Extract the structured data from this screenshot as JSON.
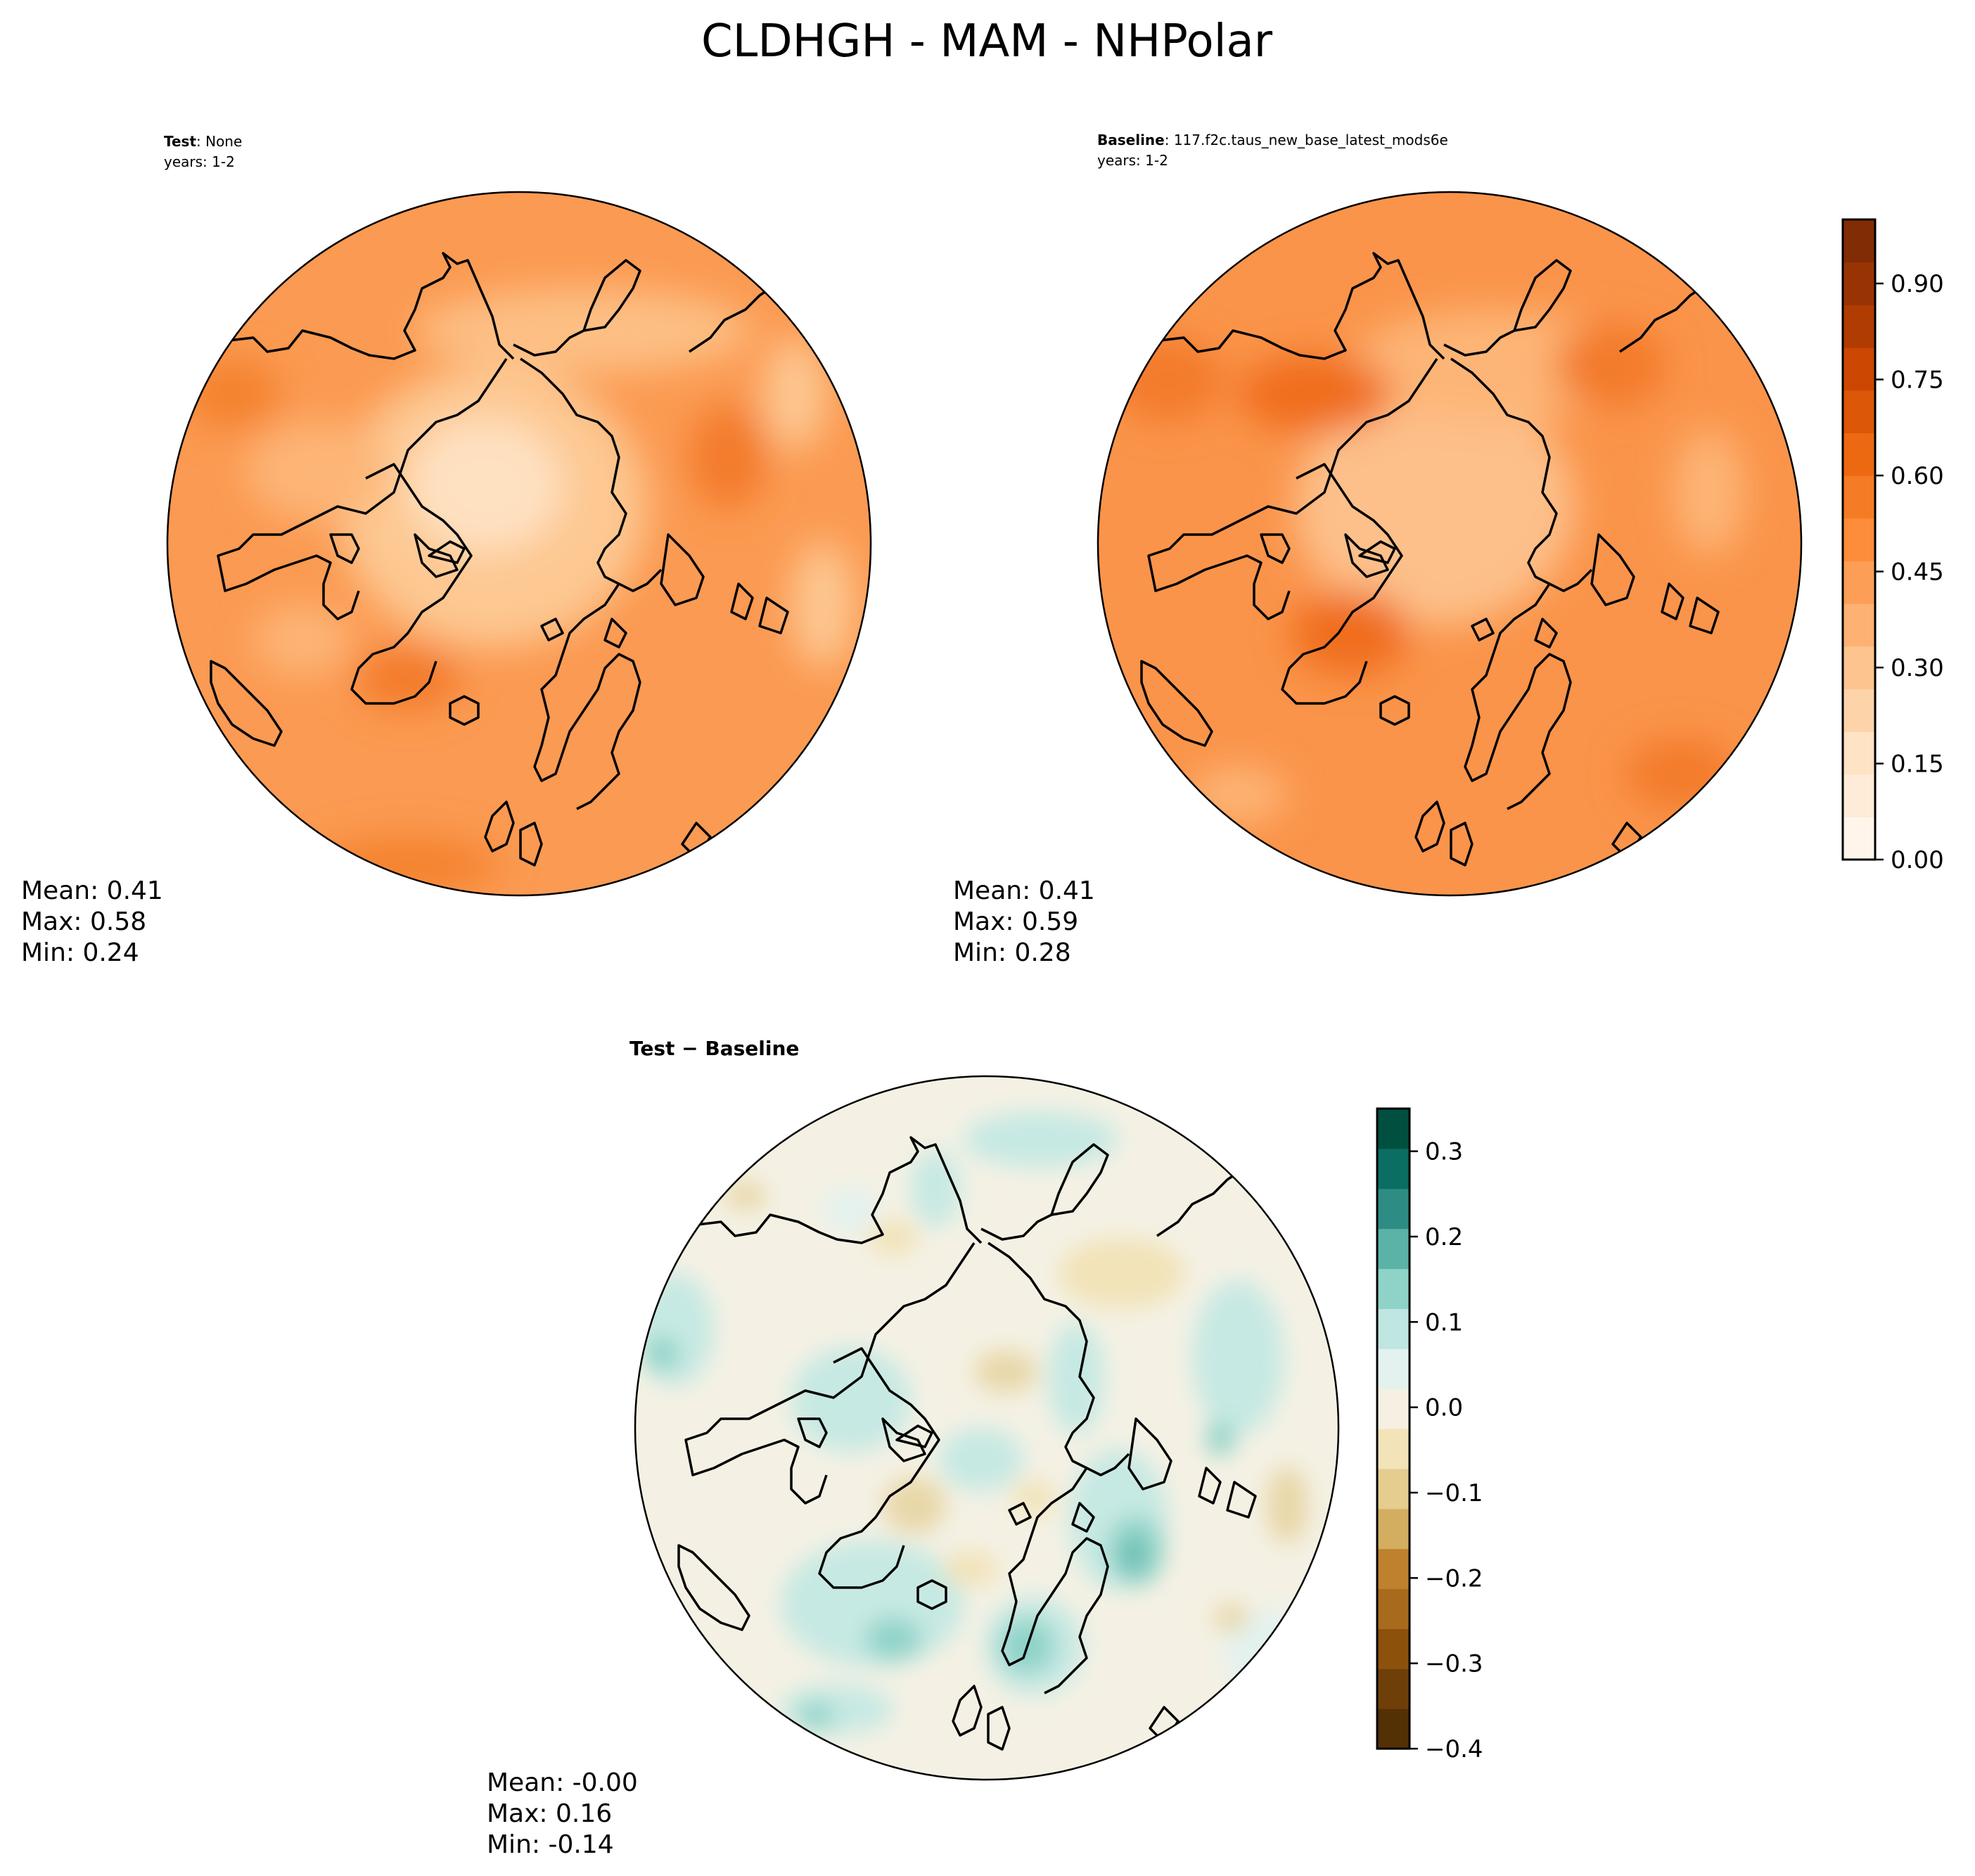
{
  "title": "CLDHGH - MAM - NHPolar",
  "panels": {
    "test": {
      "label_bold": "Test",
      "label_rest": ": None",
      "years": "years: 1-2",
      "stats": {
        "mean": "Mean:  0.41",
        "max": "Max:  0.58",
        "min": "Min:  0.24"
      }
    },
    "baseline": {
      "label_bold": "Baseline",
      "label_rest": ": 117.f2c.taus_new_base_latest_mods6e",
      "years": "years: 1-2",
      "stats": {
        "mean": "Mean:  0.41",
        "max": "Max:  0.59",
        "min": "Min:  0.28"
      }
    },
    "diff": {
      "label_bold": "Test − Baseline",
      "stats": {
        "mean": "Mean: -0.00",
        "max": "Max:  0.16",
        "min": "Min: -0.14"
      }
    }
  },
  "colorbars": {
    "main": {
      "ticks": [
        "0.00",
        "0.15",
        "0.30",
        "0.45",
        "0.60",
        "0.75",
        "0.90"
      ],
      "tick_values": [
        0.0,
        0.15,
        0.3,
        0.45,
        0.6,
        0.75,
        0.9
      ],
      "range": [
        0.0,
        1.0
      ],
      "colors": [
        "#fff5eb",
        "#feecd8",
        "#fee3c5",
        "#fdd4aa",
        "#fdc48f",
        "#fdb173",
        "#fd9e57",
        "#fd8c3b",
        "#f57b25",
        "#ec6912",
        "#dc5708",
        "#cb4702",
        "#b03c02",
        "#983403",
        "#812c04"
      ]
    },
    "diff": {
      "ticks": [
        "0.3",
        "0.2",
        "0.1",
        "0.0",
        "−0.1",
        "−0.2",
        "−0.3",
        "−0.4"
      ],
      "tick_values": [
        0.3,
        0.2,
        0.1,
        0.0,
        -0.1,
        -0.2,
        -0.3,
        -0.4
      ],
      "range": [
        -0.4,
        0.35
      ],
      "colors": [
        "#543005",
        "#6f3f0a",
        "#8c510a",
        "#a86a1c",
        "#bf812d",
        "#d4ae60",
        "#e4cd8f",
        "#f2e3b8",
        "#f5f0e1",
        "#e3f2ef",
        "#c0e6e1",
        "#8fd3c8",
        "#5bb3a8",
        "#2d8d84",
        "#0b6e63",
        "#01503f"
      ]
    }
  },
  "map_colors": {
    "test_base": "#fb9a52",
    "baseline_base": "#fa944a",
    "diff_base": "#f4f1e4",
    "coast": "#000000"
  }
}
